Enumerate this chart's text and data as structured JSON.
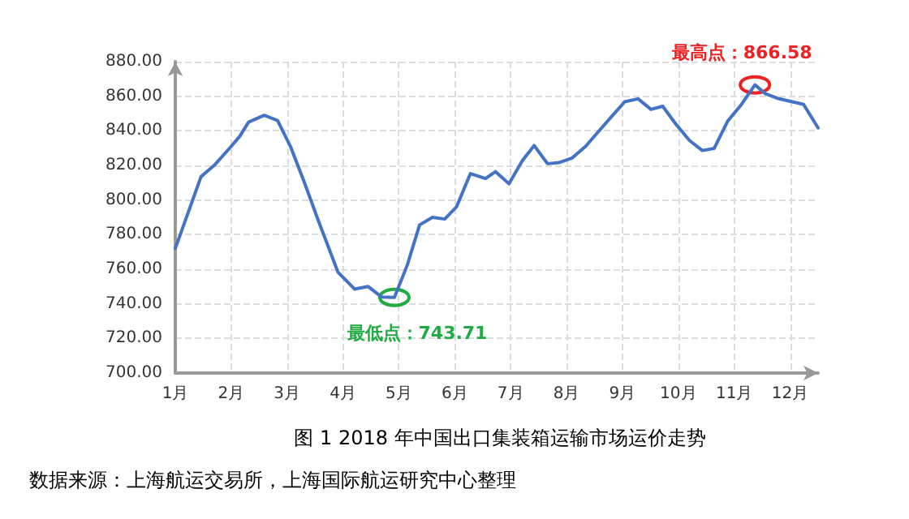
{
  "chart_data": {
    "type": "line",
    "x": [
      1.0,
      1.46,
      1.71,
      2.0,
      2.15,
      2.31,
      2.59,
      2.83,
      3.06,
      3.3,
      3.56,
      3.91,
      4.21,
      4.45,
      4.69,
      4.92,
      5.15,
      5.37,
      5.6,
      5.82,
      6.03,
      6.28,
      6.55,
      6.73,
      6.97,
      7.21,
      7.42,
      7.66,
      7.86,
      8.1,
      8.34,
      8.57,
      8.81,
      9.04,
      9.28,
      9.51,
      9.72,
      9.96,
      10.2,
      10.43,
      10.64,
      10.88,
      11.13,
      11.37,
      11.56,
      11.77,
      12.01,
      12.24,
      12.5
    ],
    "series": [
      {
        "color": "#4472c4",
        "values": [
          772,
          813.5,
          820.5,
          831,
          836.7,
          845,
          849,
          846,
          831,
          811,
          788,
          758.3,
          748.5,
          750,
          744,
          743.71,
          762.4,
          785.6,
          790,
          789,
          796,
          815.3,
          812.4,
          816.4,
          809.4,
          822.8,
          831.5,
          821,
          821.6,
          824.3,
          831,
          839.6,
          848.4,
          856.8,
          858.5,
          852.4,
          854.2,
          843.7,
          834.4,
          828.6,
          829.8,
          845.5,
          855.3,
          866.58,
          861.4,
          858.8,
          857,
          855.3,
          841.7
        ]
      }
    ],
    "xlim": [
      1,
      12.5
    ],
    "xticks": [
      {
        "value": 1,
        "label": "1月"
      },
      {
        "value": 2,
        "label": "2月"
      },
      {
        "value": 3,
        "label": "3月"
      },
      {
        "value": 4,
        "label": "4月"
      },
      {
        "value": 5,
        "label": "5月"
      },
      {
        "value": 6,
        "label": "6月"
      },
      {
        "value": 7,
        "label": "7月"
      },
      {
        "value": 8,
        "label": "8月"
      },
      {
        "value": 9,
        "label": "9月"
      },
      {
        "value": 10,
        "label": "10月"
      },
      {
        "value": 11,
        "label": "11月"
      },
      {
        "value": 12,
        "label": "12月"
      }
    ],
    "ylim": [
      700,
      880
    ],
    "yticks": [
      {
        "value": 700,
        "label": "700.00"
      },
      {
        "value": 720,
        "label": "720.00"
      },
      {
        "value": 740,
        "label": "740.00"
      },
      {
        "value": 760,
        "label": "760.00"
      },
      {
        "value": 780,
        "label": "780.00"
      },
      {
        "value": 800,
        "label": "800.00"
      },
      {
        "value": 820,
        "label": "820.00"
      },
      {
        "value": 840,
        "label": "840.00"
      },
      {
        "value": 860,
        "label": "860.00"
      },
      {
        "value": 880,
        "label": "880.00"
      }
    ],
    "grid": true,
    "marker": "none",
    "line_style": "solid",
    "annotations": [
      {
        "text": "最低点：743.71",
        "x": 4.92,
        "y": 743.71
      },
      {
        "text": "最高点：866.58",
        "x": 11.37,
        "y": 866.58
      },
      "图 1 2018 年中国出口集装箱运输市场运价走势",
      "数据来源：上海航运交易所，上海国际航运研究中心整理"
    ]
  }
}
